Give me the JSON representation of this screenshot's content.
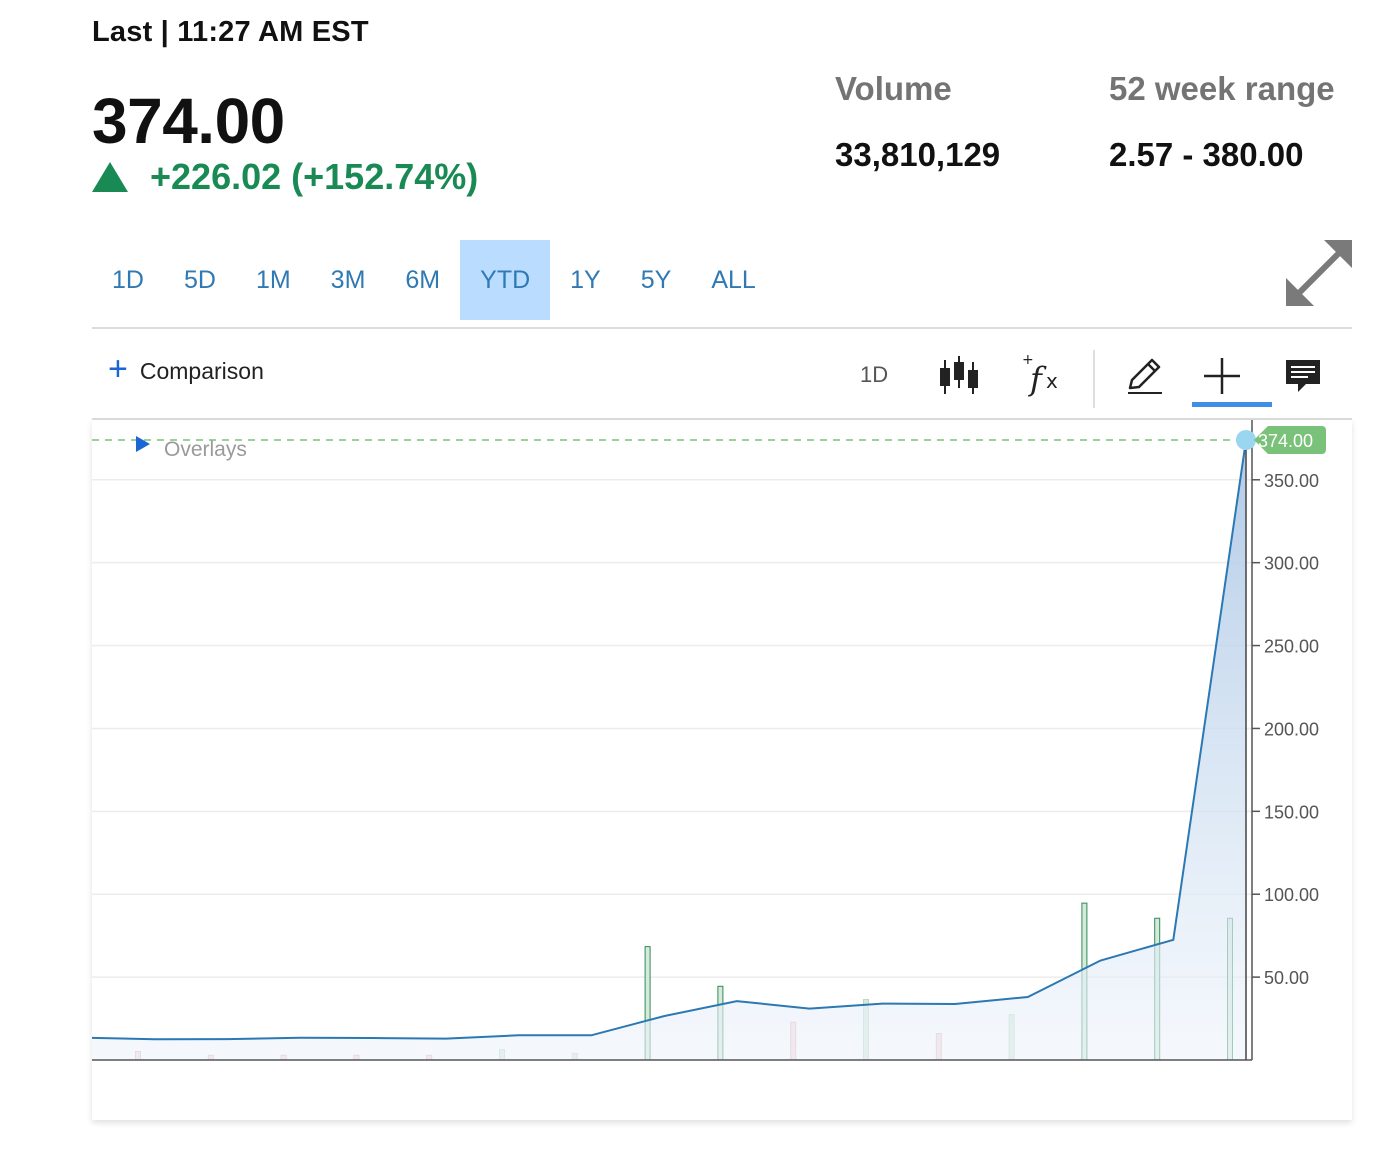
{
  "quote": {
    "last_label": "Last | 11:27 AM EST",
    "price": "374.00",
    "change": "+226.02 (+152.74%)"
  },
  "stats": {
    "volume_label": "Volume",
    "volume_value": "33,810,129",
    "range_label": "52 week range",
    "range_value": "2.57 - 380.00"
  },
  "range_tabs": [
    {
      "label": "1D",
      "active": false
    },
    {
      "label": "5D",
      "active": false
    },
    {
      "label": "1M",
      "active": false
    },
    {
      "label": "3M",
      "active": false
    },
    {
      "label": "6M",
      "active": false
    },
    {
      "label": "YTD",
      "active": true
    },
    {
      "label": "1Y",
      "active": false
    },
    {
      "label": "5Y",
      "active": false
    },
    {
      "label": "ALL",
      "active": false
    }
  ],
  "toolbar": {
    "comparison_label": "Comparison",
    "interval_label": "1D"
  },
  "chart": {
    "overlays_label": "Overlays",
    "last_price_tag": "374.00",
    "colors": {
      "line": "#2b78b3",
      "area_top": "#adc8e6",
      "up_volume": "#2e8b57",
      "down_volume": "#e8b0b8",
      "last_price": "#7ac27a",
      "last_marker": "#9ad6f0",
      "active_tab": "#b9dcff",
      "accent": "#3f8ee8"
    }
  },
  "chart_data": {
    "type": "line",
    "ylim": [
      0,
      374
    ],
    "yticks": [
      50,
      100,
      150,
      200,
      250,
      300,
      350
    ],
    "ytick_labels": [
      "50.00",
      "100.00",
      "150.00",
      "200.00",
      "250.00",
      "300.00",
      "350.00"
    ],
    "price": [
      13.5,
      12.5,
      12.6,
      13.4,
      13.3,
      12.9,
      14.9,
      14.9,
      26.5,
      35.5,
      31.0,
      34.0,
      33.8,
      38.0,
      60.0,
      72.5,
      374.0
    ],
    "volume": [
      {
        "value": 4.5,
        "dir": "down"
      },
      {
        "value": 2.5,
        "dir": "down"
      },
      {
        "value": 2.5,
        "dir": "down"
      },
      {
        "value": 2.5,
        "dir": "down"
      },
      {
        "value": 2.5,
        "dir": "down"
      },
      {
        "value": 5.5,
        "dir": "up"
      },
      {
        "value": 3.5,
        "dir": "up"
      },
      {
        "value": 60.0,
        "dir": "up"
      },
      {
        "value": 39.0,
        "dir": "up"
      },
      {
        "value": 20.0,
        "dir": "down"
      },
      {
        "value": 32.0,
        "dir": "up"
      },
      {
        "value": 14.0,
        "dir": "down"
      },
      {
        "value": 24.0,
        "dir": "up"
      },
      {
        "value": 83.0,
        "dir": "up"
      },
      {
        "value": 75.0,
        "dir": "up"
      },
      {
        "value": 75.0,
        "dir": "up"
      }
    ],
    "last_price": 374.0
  }
}
